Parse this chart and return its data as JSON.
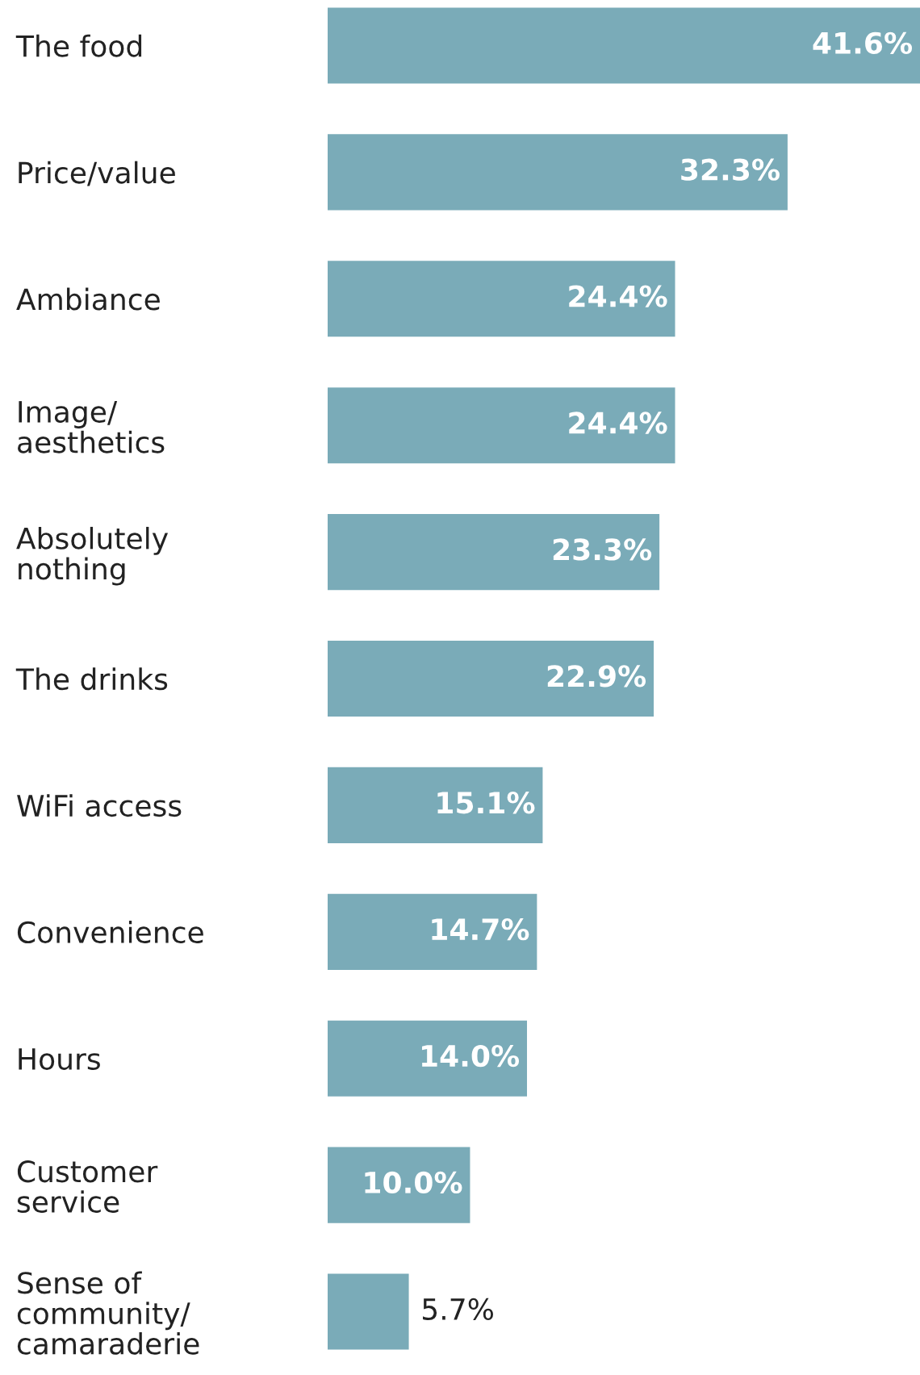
{
  "chart_data": {
    "type": "bar",
    "orientation": "horizontal",
    "categories": [
      "The food",
      "Price/value",
      "Ambiance",
      "Image/\naesthetics",
      "Absolutely\nnothing",
      "The drinks",
      "WiFi access",
      "Convenience",
      "Hours",
      "Customer\nservice",
      "Sense of\ncommunity/\ncamaraderie"
    ],
    "values": [
      41.6,
      32.3,
      24.4,
      24.4,
      23.3,
      22.9,
      15.1,
      14.7,
      14.0,
      10.0,
      5.7
    ],
    "value_labels": [
      "41.6%",
      "32.3%",
      "24.4%",
      "24.4%",
      "23.3%",
      "22.9%",
      "15.1%",
      "14.7%",
      "14.0%",
      "10.0%",
      "5.7%"
    ],
    "color": "#7aabb8",
    "tick_labels": "y",
    "grid": false,
    "legend": false
  }
}
